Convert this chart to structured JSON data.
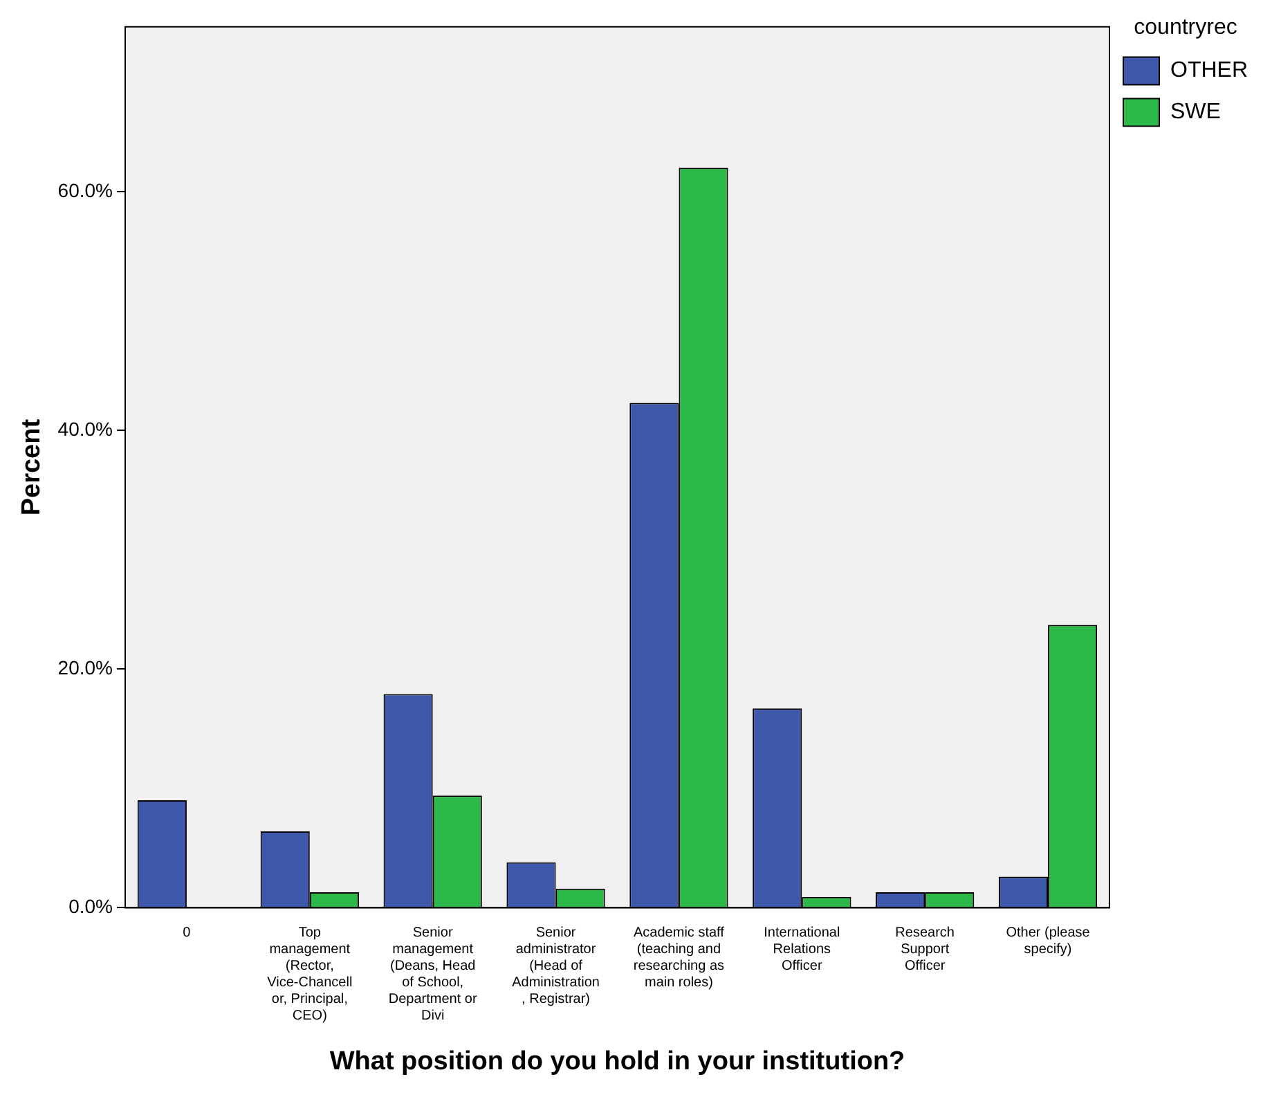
{
  "chart_data": {
    "type": "bar",
    "xlabel": "What position do you hold in your institution?",
    "ylabel": "Percent",
    "legend_title": "countryrec",
    "legend": "top right",
    "grid": false,
    "categories": [
      "0",
      "Top management (Rector, Vice-Chancellor, Principal, CEO)",
      "Senior management (Deans, Head of School, Department or Divi",
      "Senior administrator (Head of Administration, Registrar)",
      "Academic staff (teaching and researching as main roles)",
      "International Relations Officer",
      "Research Support Officer",
      "Other (please specify)"
    ],
    "series": [
      {
        "name": "OTHER",
        "color": "#3e58ac",
        "values": [
          9.0,
          6.4,
          17.9,
          3.8,
          42.3,
          16.7,
          1.3,
          2.6
        ]
      },
      {
        "name": "SWE",
        "color": "#2db84a",
        "values": [
          null,
          1.3,
          9.4,
          1.6,
          62.0,
          0.9,
          1.3,
          23.7
        ]
      }
    ],
    "ylim": [
      0,
      73.8
    ],
    "yticks": [
      {
        "value": 0,
        "label": "0.0%"
      },
      {
        "value": 20,
        "label": "20.0%"
      },
      {
        "value": 40,
        "label": "40.0%"
      },
      {
        "value": 60,
        "label": "60.0%"
      }
    ]
  }
}
